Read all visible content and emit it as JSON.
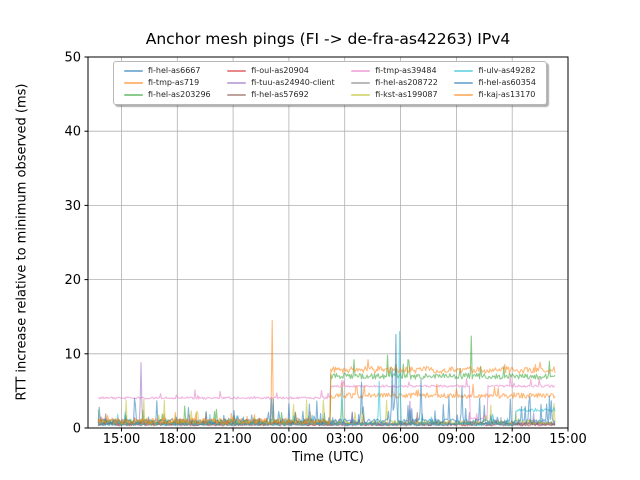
{
  "chart_data": {
    "type": "line",
    "title": "Anchor mesh pings (FI -> de-fra-as42263) IPv4",
    "xlabel": "Time (UTC)",
    "ylabel": "RTT increase relative to minimum observed (ms)",
    "grid": true,
    "grid_color": "#b0b0b0",
    "spine_color": "#000000",
    "text_color": "#000000",
    "line_alpha": 0.55,
    "legend_position": "upper center, 4 columns",
    "x_axis": {
      "unit": "hours from first day 00:00 UTC",
      "range": [
        13.2,
        39.0
      ],
      "ticks": [
        {
          "h": 15,
          "label": "15:00"
        },
        {
          "h": 18,
          "label": "18:00"
        },
        {
          "h": 21,
          "label": "21:00"
        },
        {
          "h": 24,
          "label": "00:00"
        },
        {
          "h": 27,
          "label": "03:00"
        },
        {
          "h": 30,
          "label": "06:00"
        },
        {
          "h": 33,
          "label": "09:00"
        },
        {
          "h": 36,
          "label": "12:00"
        },
        {
          "h": 39,
          "label": "15:00"
        }
      ]
    },
    "y_axis": {
      "range": [
        0,
        50
      ],
      "ticks": [
        0,
        10,
        20,
        30,
        40,
        50
      ]
    },
    "sample_step_hours": 0.05,
    "data_span_hours": [
      13.75,
      38.3
    ],
    "series": [
      {
        "name": "fi-hel-as6667",
        "color": "#1f77b4",
        "segments": [
          {
            "from": 13.75,
            "to": 38.3,
            "base": 0.5
          }
        ],
        "noise": 0.5,
        "spike_prob": 0.04,
        "spike_max": 2.5,
        "events": []
      },
      {
        "name": "fi-tmp-as719",
        "color": "#ff7f0e",
        "segments": [
          {
            "from": 13.75,
            "to": 26.25,
            "base": 0.6
          },
          {
            "from": 26.25,
            "to": 38.3,
            "base": 4.25
          }
        ],
        "noise": 0.7,
        "spike_prob": 0.05,
        "spike_max": 1.6,
        "events": [
          {
            "t": 23.1,
            "v": 14.5
          }
        ]
      },
      {
        "name": "fi-hel-as203296",
        "color": "#2ca02c",
        "segments": [
          {
            "from": 13.75,
            "to": 26.25,
            "base": 0.7
          },
          {
            "from": 26.25,
            "to": 38.3,
            "base": 6.85
          }
        ],
        "noise": 0.8,
        "spike_prob": 0.05,
        "spike_max": 2.2,
        "events": [
          {
            "t": 27.5,
            "v": 9.2
          },
          {
            "t": 29.3,
            "v": 9.8
          },
          {
            "t": 33.82,
            "v": 12.4
          },
          {
            "t": 34.3,
            "v": 8.3
          },
          {
            "t": 38.0,
            "v": 9.0
          }
        ]
      },
      {
        "name": "fi-oul-as20904",
        "color": "#d62728",
        "segments": [
          {
            "from": 13.75,
            "to": 38.3,
            "base": 0.4
          }
        ],
        "noise": 0.35,
        "spike_prob": 0.02,
        "spike_max": 1.2,
        "events": []
      },
      {
        "name": "fi-tuu-as24940-client",
        "color": "#9467bd",
        "segments": [
          {
            "from": 13.75,
            "to": 38.3,
            "base": 0.55
          }
        ],
        "noise": 0.4,
        "spike_prob": 0.03,
        "spike_max": 1.8,
        "events": [
          {
            "t": 16.05,
            "v": 8.8
          },
          {
            "t": 30.5,
            "v": 3.6
          }
        ]
      },
      {
        "name": "fi-hel-as57692",
        "color": "#8c564b",
        "segments": [
          {
            "from": 13.75,
            "to": 38.3,
            "base": 0.55
          }
        ],
        "noise": 0.4,
        "spike_prob": 0.03,
        "spike_max": 1.5,
        "events": []
      },
      {
        "name": "fi-tmp-as39484",
        "color": "#e377c2",
        "segments": [
          {
            "from": 13.75,
            "to": 26.25,
            "base": 4.0
          },
          {
            "from": 26.25,
            "to": 33.75,
            "base": 5.6
          },
          {
            "from": 33.75,
            "to": 34.7,
            "base": 1.2
          },
          {
            "from": 34.7,
            "to": 38.3,
            "base": 5.6
          }
        ],
        "noise": 0.3,
        "spike_prob": 0.04,
        "spike_max": 1.1,
        "events": [
          {
            "t": 35.9,
            "v": 7.0
          },
          {
            "t": 37.0,
            "v": 6.6
          }
        ]
      },
      {
        "name": "fi-hel-as208722",
        "color": "#7f7f7f",
        "segments": [
          {
            "from": 13.75,
            "to": 38.3,
            "base": 0.45
          }
        ],
        "noise": 0.35,
        "spike_prob": 0.02,
        "spike_max": 1.0,
        "events": []
      },
      {
        "name": "fi-kst-as199087",
        "color": "#bcbd22",
        "segments": [
          {
            "from": 13.75,
            "to": 38.3,
            "base": 0.7
          }
        ],
        "noise": 0.55,
        "spike_prob": 0.07,
        "spike_max": 3.2,
        "events": []
      },
      {
        "name": "fi-ulv-as49282",
        "color": "#17becf",
        "segments": [
          {
            "from": 13.75,
            "to": 36.2,
            "base": 0.45
          },
          {
            "from": 36.2,
            "to": 38.3,
            "base": 2.35
          }
        ],
        "noise": 0.4,
        "spike_prob": 0.03,
        "spike_max": 1.6,
        "events": [
          {
            "t": 26.85,
            "v": 5.5
          },
          {
            "t": 28.85,
            "v": 6.3
          },
          {
            "t": 29.93,
            "v": 13.0
          }
        ]
      },
      {
        "name": "fi-hel-as60354",
        "color": "#1f77b4",
        "segments": [
          {
            "from": 13.75,
            "to": 38.3,
            "base": 0.85
          }
        ],
        "noise": 0.6,
        "spike_prob": 0.09,
        "spike_max": 3.4,
        "events": [
          {
            "t": 27.9,
            "v": 6.2
          },
          {
            "t": 29.55,
            "v": 8.0
          },
          {
            "t": 29.75,
            "v": 12.6
          },
          {
            "t": 31.1,
            "v": 6.5
          },
          {
            "t": 33.3,
            "v": 5.5
          }
        ]
      },
      {
        "name": "fi-kaj-as13170",
        "color": "#ff7f0e",
        "segments": [
          {
            "from": 13.75,
            "to": 26.25,
            "base": 0.75
          },
          {
            "from": 26.25,
            "to": 38.3,
            "base": 7.7
          }
        ],
        "noise": 0.9,
        "spike_prob": 0.04,
        "spike_max": 1.1,
        "events": []
      }
    ]
  }
}
